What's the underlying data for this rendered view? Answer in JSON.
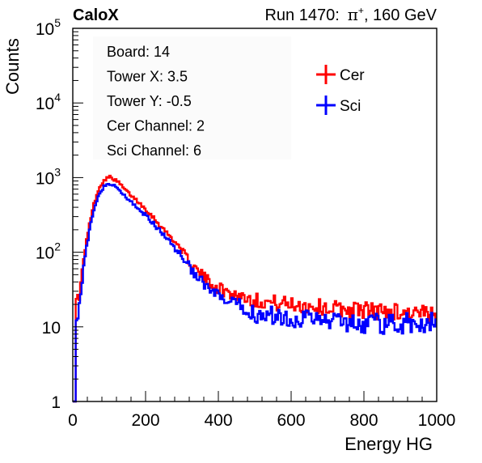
{
  "header": {
    "brand": "CaloX",
    "run": "Run 1470:",
    "particle": "π",
    "charge": "+",
    "energy": ", 160 GeV"
  },
  "info_box": [
    "Board: 14",
    "Tower X: 3.5",
    "Tower Y: -0.5",
    "Cer Channel: 2",
    "Sci Channel: 6"
  ],
  "chart_data": {
    "type": "line",
    "xlabel": "Energy HG",
    "ylabel": "Counts",
    "xlim": [
      0,
      1000
    ],
    "ylim": [
      1,
      100000
    ],
    "yscale": "log",
    "grid": false,
    "legend_position": "top-right",
    "x_ticks": [
      "0",
      "200",
      "400",
      "600",
      "800",
      "1000"
    ],
    "y_ticks": [
      {
        "base": "1",
        "exp": ""
      },
      {
        "base": "10",
        "exp": ""
      },
      {
        "base": "10",
        "exp": "2"
      },
      {
        "base": "10",
        "exp": "3"
      },
      {
        "base": "10",
        "exp": "4"
      },
      {
        "base": "10",
        "exp": "5"
      }
    ],
    "x": [
      0,
      5,
      10,
      20,
      30,
      40,
      50,
      60,
      70,
      80,
      90,
      100,
      110,
      120,
      130,
      140,
      150,
      175,
      200,
      225,
      250,
      275,
      300,
      325,
      350,
      375,
      400,
      425,
      450,
      475,
      500,
      550,
      600,
      650,
      700,
      750,
      800,
      850,
      900,
      950,
      975,
      1000
    ],
    "series": [
      {
        "name": "Cer",
        "color": "#ff0000",
        "values": [
          1,
          80,
          20,
          30,
          80,
          160,
          300,
          480,
          680,
          850,
          960,
          1020,
          980,
          900,
          820,
          720,
          640,
          500,
          380,
          280,
          200,
          150,
          105,
          70,
          52,
          40,
          33,
          29,
          27,
          25,
          23,
          21,
          20,
          19,
          18,
          17,
          17,
          16,
          16,
          15,
          14,
          13
        ]
      },
      {
        "name": "Sci",
        "color": "#0000ff",
        "values": [
          1,
          50,
          14,
          22,
          65,
          130,
          240,
          400,
          570,
          700,
          790,
          820,
          790,
          730,
          660,
          590,
          520,
          410,
          310,
          230,
          170,
          125,
          88,
          60,
          42,
          31,
          25,
          21,
          19,
          17,
          15,
          14,
          13,
          13,
          12,
          12,
          11,
          11,
          11,
          11,
          11,
          12
        ]
      }
    ],
    "annotations": [
      "CaloX"
    ]
  }
}
